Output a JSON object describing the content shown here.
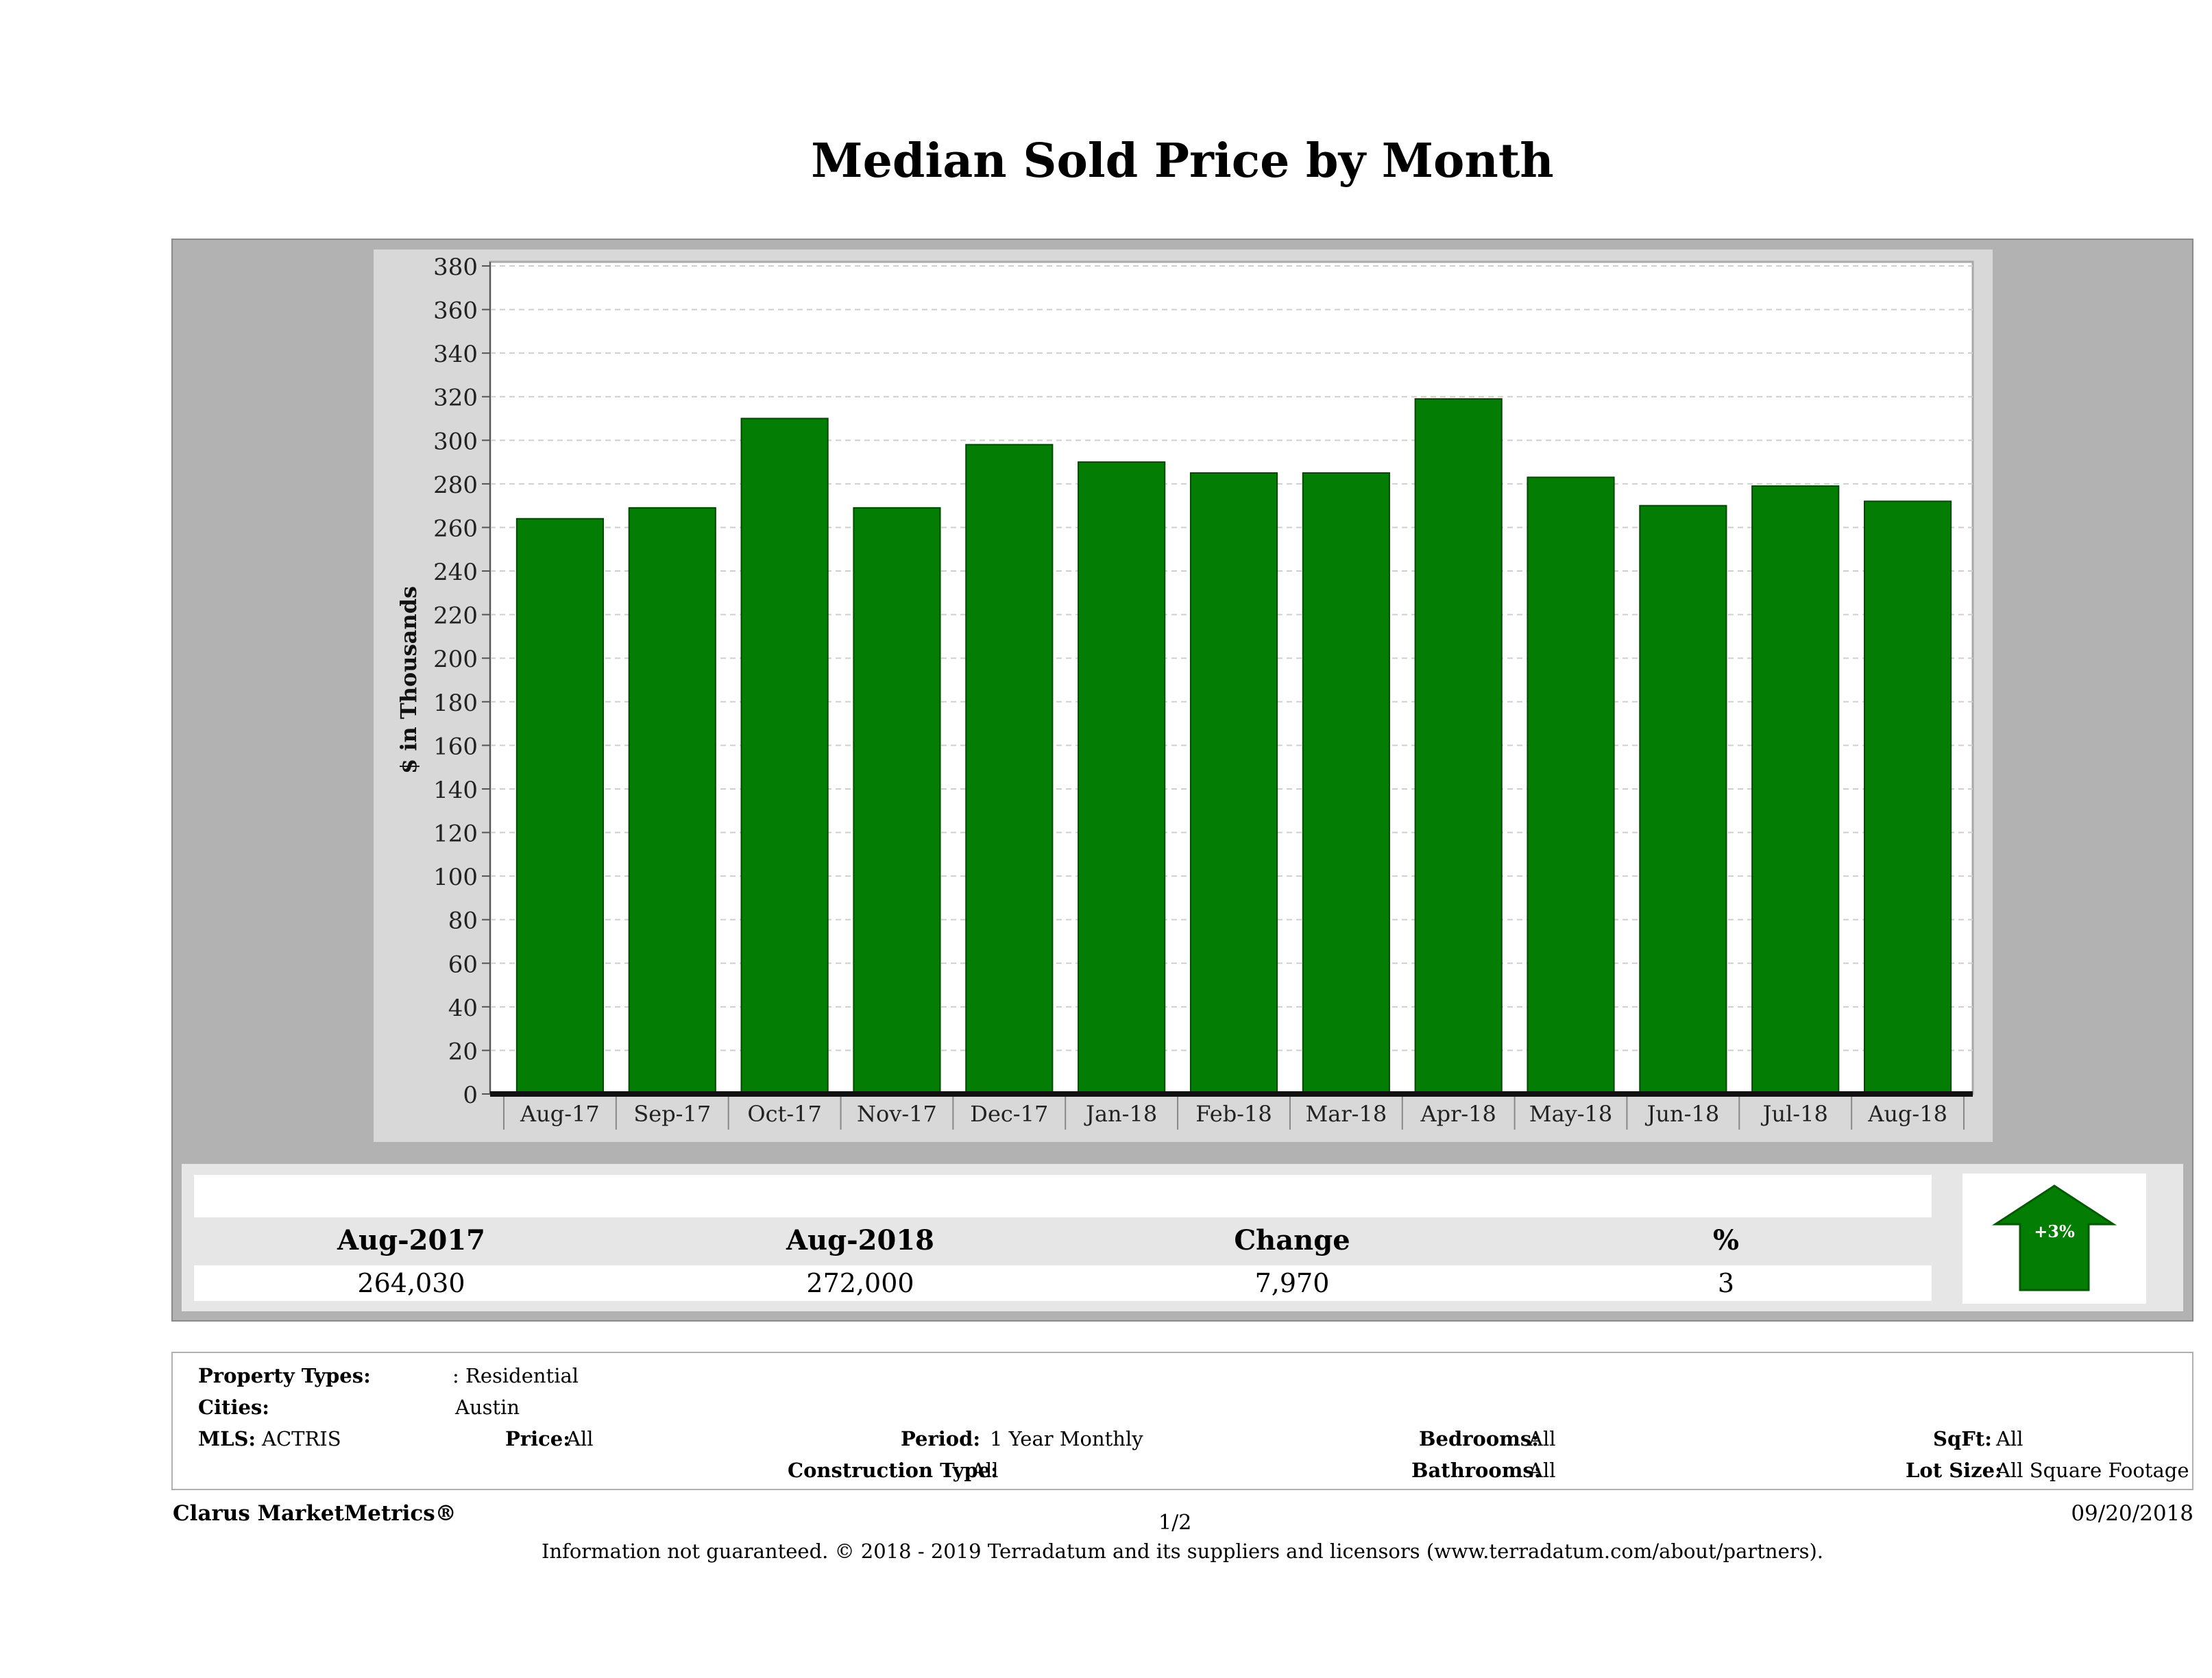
{
  "chart_data": {
    "type": "bar",
    "title": "Median Sold Price by Month",
    "ylabel": "$ in Thousands",
    "xlabel": "",
    "categories": [
      "Aug-17",
      "Sep-17",
      "Oct-17",
      "Nov-17",
      "Dec-17",
      "Jan-18",
      "Feb-18",
      "Mar-18",
      "Apr-18",
      "May-18",
      "Jun-18",
      "Jul-18",
      "Aug-18"
    ],
    "values": [
      264,
      269,
      310,
      269,
      298,
      290,
      285,
      285,
      319,
      283,
      270,
      279,
      272
    ],
    "ylim": [
      0,
      380
    ],
    "yticks": [
      0,
      20,
      40,
      60,
      80,
      100,
      120,
      140,
      160,
      180,
      200,
      220,
      240,
      260,
      280,
      300,
      320,
      340,
      360,
      380
    ],
    "bar_color": "#037d03",
    "grid": true
  },
  "summary": {
    "headers": [
      "Aug-2017",
      "Aug-2018",
      "Change",
      "%"
    ],
    "values": [
      "264,030",
      "272,000",
      "7,970",
      "3"
    ],
    "badge": "+3%",
    "badge_color": "#037d03"
  },
  "filters": {
    "property_types_label": "Property Types:",
    "property_types_value": ": Residential",
    "cities_label": "Cities:",
    "cities_value": "Austin",
    "mls_label": "MLS:",
    "mls_value": "ACTRIS",
    "price_label": "Price:",
    "price_value": "All",
    "period_label": "Period:",
    "period_value": "1 Year Monthly",
    "construction_label": "Construction Type:",
    "construction_value": "All",
    "bedrooms_label": "Bedrooms:",
    "bedrooms_value": "All",
    "bathrooms_label": "Bathrooms:",
    "bathrooms_value": "All",
    "sqft_label": "SqFt:",
    "sqft_value": "All",
    "lot_size_label": "Lot Size:",
    "lot_size_value": "All Square Footage"
  },
  "footer": {
    "brand": "Clarus MarketMetrics®",
    "page": "1/2",
    "date": "09/20/2018",
    "disclaimer": "Information not guaranteed. © 2018 - 2019 Terradatum and its suppliers and licensors (www.terradatum.com/about/partners)."
  }
}
